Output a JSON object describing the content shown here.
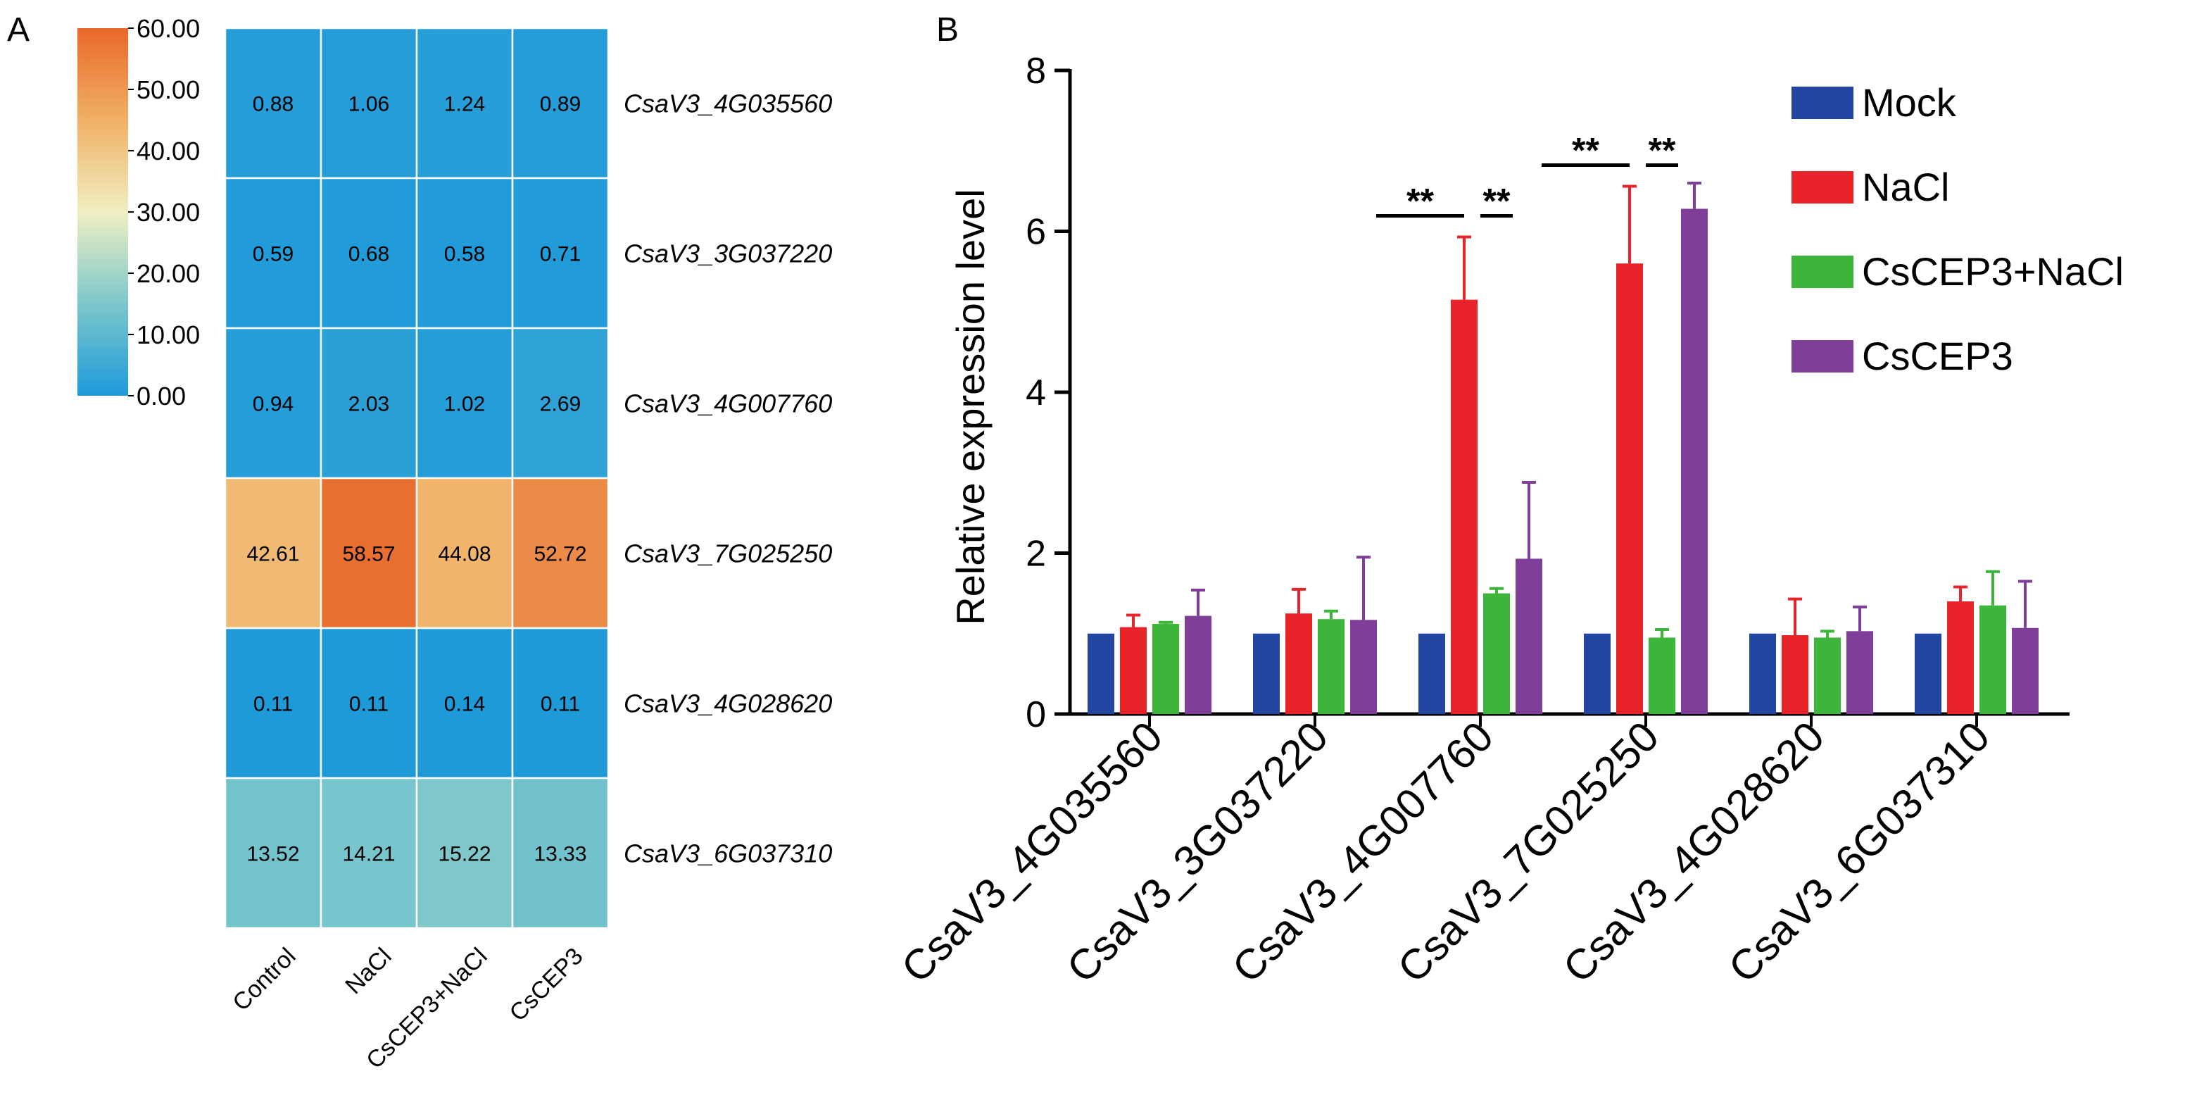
{
  "chart_data": [
    {
      "type": "heatmap",
      "panel_label": "A",
      "columns": [
        "Control",
        "NaCl",
        "CsCEP3+NaCl",
        "CsCEP3"
      ],
      "rows": [
        "CsaV3_4G035560",
        "CsaV3_3G037220",
        "CsaV3_4G007760",
        "CsaV3_7G025250",
        "CsaV3_4G028620",
        "CsaV3_6G037310"
      ],
      "values": [
        [
          0.88,
          1.06,
          1.24,
          0.89
        ],
        [
          0.59,
          0.68,
          0.58,
          0.71
        ],
        [
          0.94,
          2.03,
          1.02,
          2.69
        ],
        [
          42.61,
          58.57,
          44.08,
          52.72
        ],
        [
          0.11,
          0.11,
          0.14,
          0.11
        ],
        [
          13.52,
          14.21,
          15.22,
          13.33
        ]
      ],
      "value_labels": [
        [
          "0.88",
          "1.06",
          "1.24",
          "0.89"
        ],
        [
          "0.59",
          "0.68",
          "0.58",
          "0.71"
        ],
        [
          "0.94",
          "2.03",
          "1.02",
          "2.69"
        ],
        [
          "42.61",
          "58.57",
          "44.08",
          "52.72"
        ],
        [
          "0.11",
          "0.11",
          "0.14",
          "0.11"
        ],
        [
          "13.52",
          "14.21",
          "15.22",
          "13.33"
        ]
      ],
      "colorbar": {
        "range": [
          0,
          60
        ],
        "ticks": [
          "60.00",
          "50.00",
          "40.00",
          "30.00",
          "20.00",
          "10.00",
          "0.00"
        ],
        "colors": [
          "#1e9ad9",
          "#7cc7cc",
          "#f0efc2",
          "#f0b065",
          "#e8682a"
        ]
      }
    },
    {
      "type": "bar",
      "panel_label": "B",
      "ylabel": "Relative expression level",
      "ylim": [
        0,
        8
      ],
      "yticks": [
        "0",
        "2",
        "4",
        "6",
        "8"
      ],
      "categories": [
        "CsaV3_4G035560",
        "CsaV3_3G037220",
        "CsaV3_4G007760",
        "CsaV3_7G025250",
        "CsaV3_4G028620",
        "CsaV3_6G037310"
      ],
      "series": [
        {
          "name": "Mock",
          "color": "#2145a0",
          "values": [
            1.0,
            1.0,
            1.0,
            1.0,
            1.0,
            1.0
          ],
          "errors": [
            0,
            0,
            0,
            0,
            0,
            0
          ]
        },
        {
          "name": "NaCl",
          "color": "#e8242a",
          "values": [
            1.08,
            1.25,
            5.15,
            5.6,
            0.98,
            1.4
          ],
          "errors": [
            0.15,
            0.3,
            0.78,
            0.96,
            0.45,
            0.18
          ]
        },
        {
          "name": "CsCEP3+NaCl",
          "color": "#3db53a",
          "values": [
            1.12,
            1.18,
            1.5,
            0.95,
            0.95,
            1.35
          ],
          "errors": [
            0.02,
            0.1,
            0.06,
            0.1,
            0.08,
            0.42
          ]
        },
        {
          "name": "CsCEP3",
          "color": "#7f3f98",
          "values": [
            1.22,
            1.17,
            1.93,
            6.28,
            1.03,
            1.07
          ],
          "errors": [
            0.32,
            0.78,
            0.95,
            0.32,
            0.3,
            0.58
          ]
        }
      ],
      "significance": [
        {
          "category": 2,
          "from_series": 0,
          "to_series": 1,
          "label": "**"
        },
        {
          "category": 2,
          "from_series": 1,
          "to_series": 2,
          "label": "**"
        },
        {
          "category": 3,
          "from_series": 0,
          "to_series": 1,
          "label": "**"
        },
        {
          "category": 3,
          "from_series": 1,
          "to_series": 2,
          "label": "**"
        }
      ]
    }
  ]
}
